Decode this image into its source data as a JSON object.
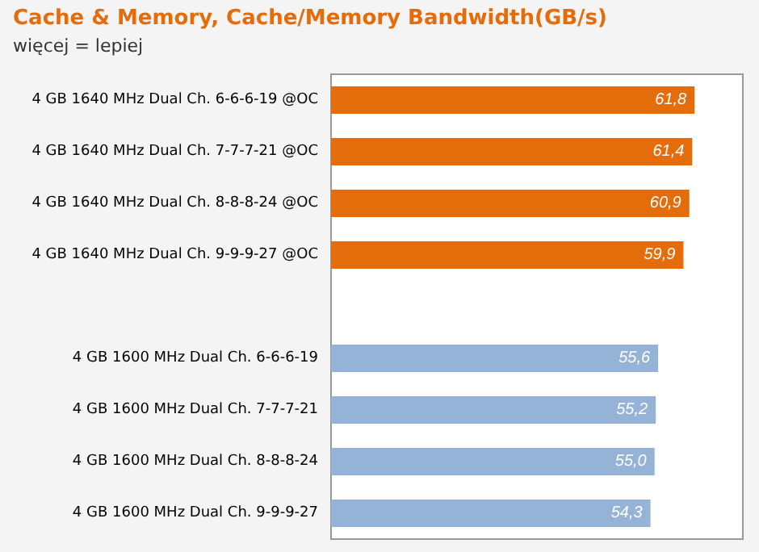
{
  "chart_data": {
    "type": "bar",
    "orientation": "horizontal",
    "title": "Cache & Memory, Cache/Memory Bandwidth(GB/s)",
    "subtitle": "więcej = lepiej",
    "categories": [
      "4 GB 1640 MHz Dual Ch. 6-6-6-19 @OC",
      "4 GB 1640 MHz Dual Ch. 7-7-7-21 @OC",
      "4 GB 1640 MHz Dual Ch. 8-8-8-24 @OC",
      "4 GB 1640 MHz Dual Ch. 9-9-9-27 @OC",
      null,
      "4 GB 1600 MHz Dual Ch. 6-6-6-19",
      "4 GB 1600 MHz Dual Ch. 7-7-7-21",
      "4 GB 1600 MHz Dual Ch. 8-8-8-24",
      "4 GB 1600 MHz Dual Ch. 9-9-9-27"
    ],
    "values": [
      61.8,
      61.4,
      60.9,
      59.9,
      null,
      55.6,
      55.2,
      55.0,
      54.3
    ],
    "value_labels": [
      "61,8",
      "61,4",
      "60,9",
      "59,9",
      null,
      "55,6",
      "55,2",
      "55,0",
      "54,3"
    ],
    "colors": [
      "#e46c0a",
      "#e46c0a",
      "#e46c0a",
      "#e46c0a",
      null,
      "#95b3d7",
      "#95b3d7",
      "#95b3d7",
      "#95b3d7"
    ]
  }
}
